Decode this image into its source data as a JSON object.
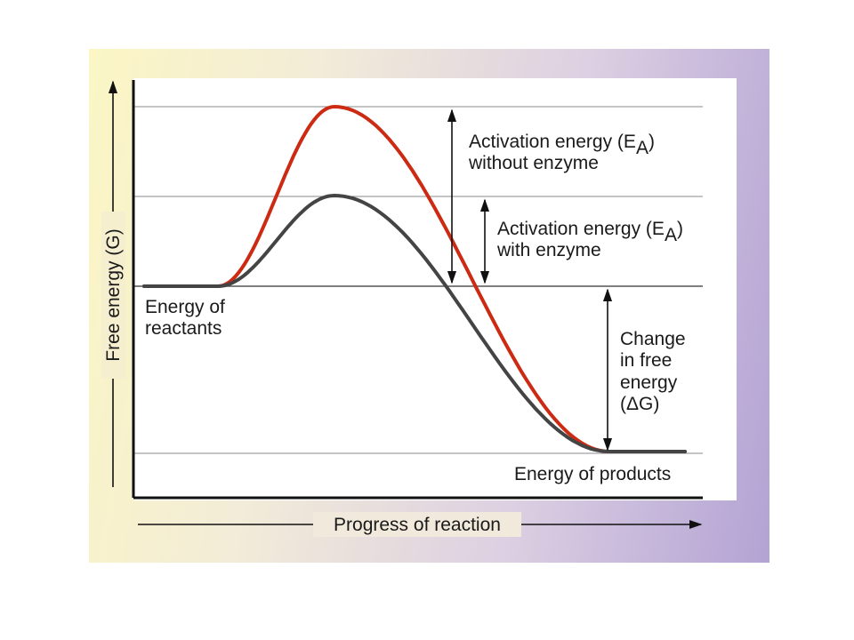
{
  "diagram": {
    "y_axis_label": "Free energy (G)",
    "x_axis_label": "Progress of reaction",
    "label_ea_without_enzyme": [
      "Activation energy (E",
      "A",
      ")",
      "without enzyme"
    ],
    "label_ea_with_enzyme": [
      "Activation energy (E",
      "A",
      ")",
      "with enzyme"
    ],
    "label_reactants": [
      "Energy of",
      "reactants"
    ],
    "label_products": "Energy of products",
    "label_delta_g": [
      "Change",
      "in free",
      "energy",
      "(ΔG)"
    ],
    "curve_without_enzyme": "without enzyme",
    "curve_with_enzyme": "with enzyme",
    "colors": {
      "curve_without_enzyme": "#cc2a12",
      "curve_with_enzyme": "#444444",
      "panel_left": "#fbf6c4",
      "panel_right": "#b3a3d4"
    }
  }
}
